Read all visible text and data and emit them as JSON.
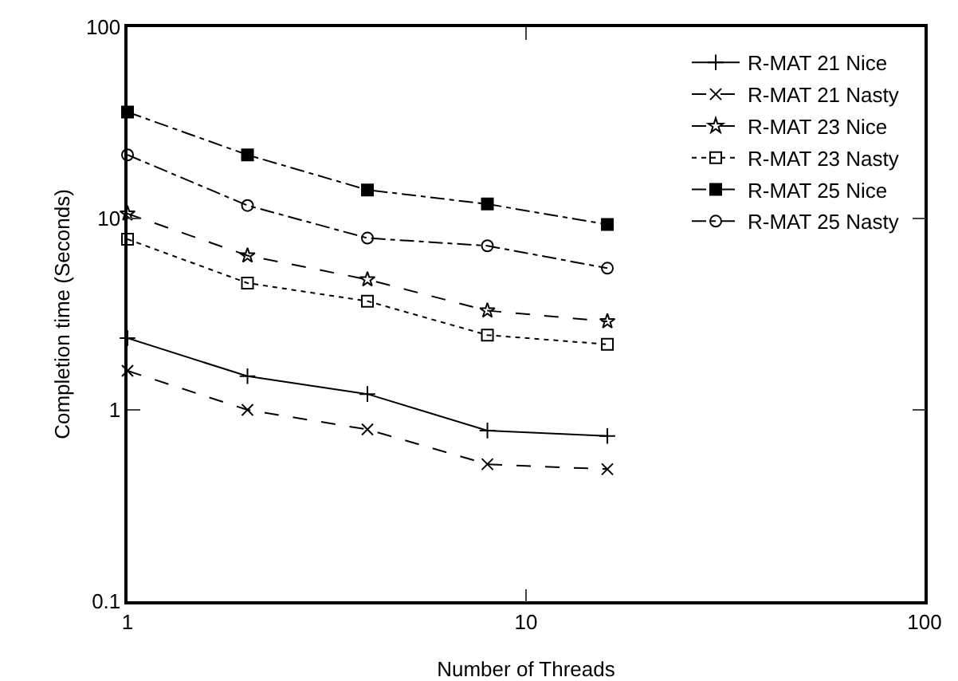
{
  "chart_data": {
    "type": "line",
    "xlabel": "Number of Threads",
    "ylabel": "Completion time (Seconds)",
    "log": "xy",
    "x": [
      1,
      2,
      4,
      8,
      16
    ],
    "series": [
      {
        "name": "R-MAT 21 Nice",
        "color": "#000000",
        "line_style": "solid",
        "marker": "cross",
        "values": [
          2.37,
          1.5,
          1.21,
          0.78,
          0.73
        ]
      },
      {
        "name": "R-MAT 21 Nasty",
        "color": "#000000",
        "line_style": "dashed",
        "marker": "x",
        "values": [
          1.6,
          1.0,
          0.79,
          0.52,
          0.49
        ]
      },
      {
        "name": "R-MAT 23 Nice",
        "color": "#000000",
        "line_style": "dashed",
        "marker": "star",
        "values": [
          10.6,
          6.4,
          4.8,
          3.3,
          2.9
        ]
      },
      {
        "name": "R-MAT 23 Nasty",
        "color": "#000000",
        "line_style": "dotted",
        "marker": "square-open",
        "values": [
          7.8,
          4.6,
          3.7,
          2.46,
          2.2
        ]
      },
      {
        "name": "R-MAT 25 Nice",
        "color": "#000000",
        "line_style": "dashdot",
        "marker": "square",
        "values": [
          36,
          21.5,
          14.1,
          11.9,
          9.3
        ]
      },
      {
        "name": "R-MAT 25 Nasty",
        "color": "#000000",
        "line_style": "dashdot",
        "marker": "circle-open",
        "values": [
          21.5,
          11.7,
          7.9,
          7.2,
          5.5
        ]
      }
    ],
    "xlim": [
      1,
      100
    ],
    "ylim": [
      0.1,
      100
    ],
    "xticks": [
      1,
      10,
      100
    ],
    "yticks": [
      0.1,
      1,
      10,
      100
    ],
    "grid": false,
    "legend": "top right"
  }
}
